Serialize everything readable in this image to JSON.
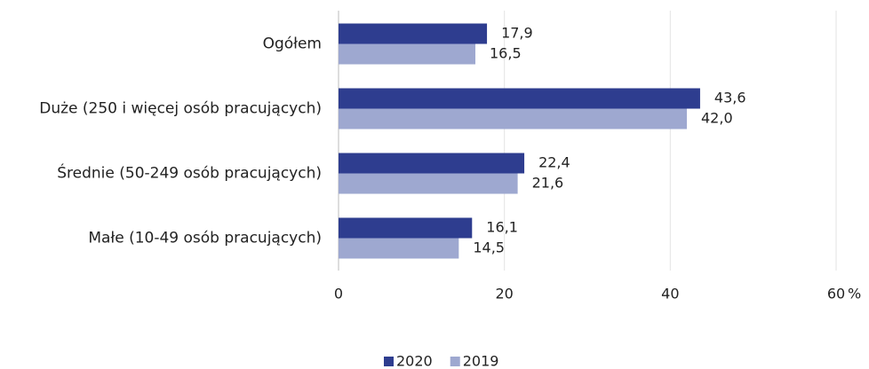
{
  "chart_data": {
    "type": "hbar",
    "categories": [
      "Ogółem",
      "Duże (250 i więcej osób pracujących)",
      "Średnie (50-249 osób pracujących)",
      "Małe (10-49 osób pracujących)"
    ],
    "series": [
      {
        "name": "2020",
        "color": "#2e3d8f",
        "values": [
          17.9,
          43.6,
          22.4,
          16.1
        ],
        "value_labels": [
          "17,9",
          "43,6",
          "22,4",
          "16,1"
        ]
      },
      {
        "name": "2019",
        "color": "#9ea8d0",
        "values": [
          16.5,
          42.0,
          21.6,
          14.5
        ],
        "value_labels": [
          "16,5",
          "42,0",
          "21,6",
          "14,5"
        ]
      }
    ],
    "xlim": [
      0,
      60
    ],
    "xticks": [
      0,
      20,
      40,
      60
    ],
    "xlabel": "%",
    "grid": true,
    "legend": "bottom"
  }
}
